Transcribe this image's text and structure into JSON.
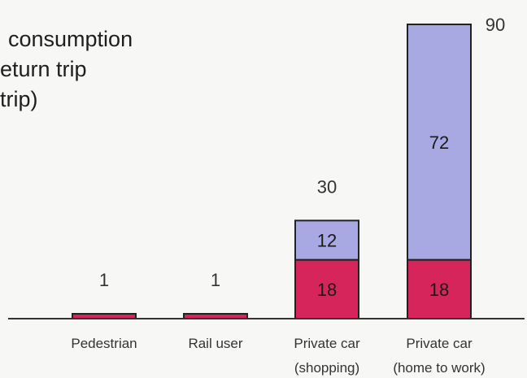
{
  "chart_data": {
    "type": "bar",
    "stacked": true,
    "title_lines": [
      "consumption",
      "eturn trip",
      " trip)"
    ],
    "categories": [
      [
        "Pedestrian"
      ],
      [
        "Rail user"
      ],
      [
        "Private car",
        "(shopping)"
      ],
      [
        "Private car",
        "(home to work)"
      ]
    ],
    "totals": [
      1,
      1,
      30,
      90
    ],
    "series": [
      {
        "values": [
          1,
          1,
          18,
          18
        ],
        "color": "#d6255a"
      },
      {
        "values": [
          0,
          0,
          12,
          72
        ],
        "color": "#a8a8e3"
      }
    ],
    "ylim": [
      0,
      90
    ],
    "axis_color": "#333333",
    "bar_outline_color": "#222222"
  }
}
